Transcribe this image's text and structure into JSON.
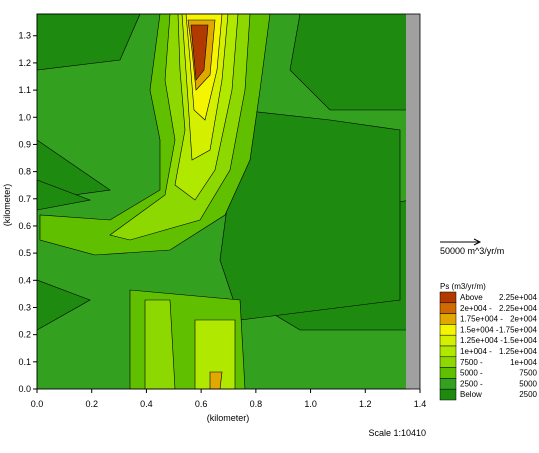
{
  "chart_data": {
    "type": "contour",
    "xlabel": "(kilometer)",
    "ylabel": "(kilometer)",
    "xlim": [
      0,
      1.4
    ],
    "ylim": [
      0,
      1.38
    ],
    "xticks": [
      {
        "value": 0,
        "label": "0.0"
      },
      {
        "value": 0.2,
        "label": "0.2"
      },
      {
        "value": 0.4,
        "label": "0.4"
      },
      {
        "value": 0.6,
        "label": "0.6"
      },
      {
        "value": 0.8,
        "label": "0.8"
      },
      {
        "value": 1.0,
        "label": "1.0"
      },
      {
        "value": 1.2,
        "label": "1.2"
      },
      {
        "value": 1.4,
        "label": "1.4"
      }
    ],
    "yticks": [
      {
        "value": 0,
        "label": "0.0"
      },
      {
        "value": 0.1,
        "label": "0.1"
      },
      {
        "value": 0.2,
        "label": "0.2"
      },
      {
        "value": 0.3,
        "label": "0.3"
      },
      {
        "value": 0.4,
        "label": "0.4"
      },
      {
        "value": 0.5,
        "label": "0.5"
      },
      {
        "value": 0.6,
        "label": "0.6"
      },
      {
        "value": 0.7,
        "label": "0.7"
      },
      {
        "value": 0.8,
        "label": "0.8"
      },
      {
        "value": 0.9,
        "label": "0.9"
      },
      {
        "value": 1.0,
        "label": "1.0"
      },
      {
        "value": 1.1,
        "label": "1.1"
      },
      {
        "value": 1.2,
        "label": "1.2"
      },
      {
        "value": 1.3,
        "label": "1.3"
      }
    ],
    "vector_scale": "50000 m^3/yr/m",
    "legend_title": "Ps (m3/yr/m)",
    "legend": [
      {
        "from": "Above",
        "to": "2.25e+004",
        "color": "#b03a00"
      },
      {
        "from": "2e+004 -",
        "to": "2.25e+004",
        "color": "#d06a00"
      },
      {
        "from": "1.75e+004 -",
        "to": "2e+004",
        "color": "#e0a800"
      },
      {
        "from": "1.5e+004 -",
        "to": "1.75e+004",
        "color": "#f5f500"
      },
      {
        "from": "1.25e+004 -",
        "to": "1.5e+004",
        "color": "#d4f000"
      },
      {
        "from": "1e+004 -",
        "to": "1.25e+004",
        "color": "#b0e800"
      },
      {
        "from": "7500 -",
        "to": "1e+004",
        "color": "#8cd800"
      },
      {
        "from": "5000 -",
        "to": "7500",
        "color": "#60c000"
      },
      {
        "from": "2500 -",
        "to": "5000",
        "color": "#34a020"
      },
      {
        "from": "Below",
        "to": "2500",
        "color": "#1e8a10"
      }
    ],
    "scale": "Scale 1:10410"
  }
}
